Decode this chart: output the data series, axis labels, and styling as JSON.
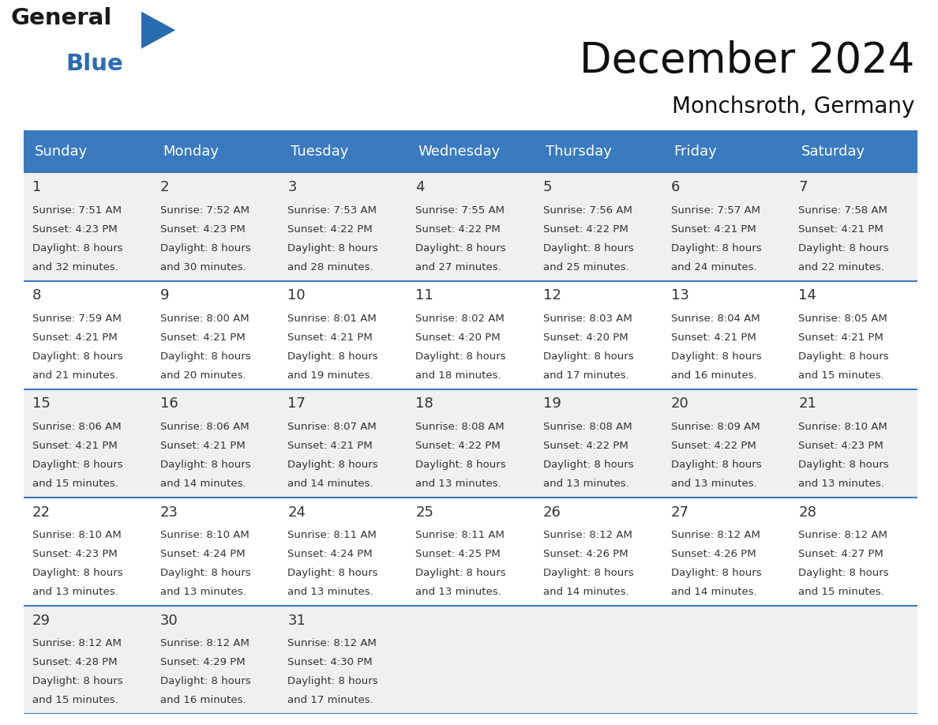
{
  "title": "December 2024",
  "subtitle": "Monchsroth, Germany",
  "header_bg_color": "#3a7abf",
  "header_text_color": "#ffffff",
  "cell_bg_week1": "#f0f0f0",
  "cell_bg_week2": "#ffffff",
  "cell_bg_week3": "#f0f0f0",
  "cell_bg_week4": "#ffffff",
  "cell_bg_week5": "#f0f0f0",
  "border_color": "#3a7abf",
  "text_color": "#333333",
  "day_names": [
    "Sunday",
    "Monday",
    "Tuesday",
    "Wednesday",
    "Thursday",
    "Friday",
    "Saturday"
  ],
  "weeks": [
    [
      {
        "day": 1,
        "sunrise": "7:51 AM",
        "sunset": "4:23 PM",
        "daylight": "8 hours and 32 minutes."
      },
      {
        "day": 2,
        "sunrise": "7:52 AM",
        "sunset": "4:23 PM",
        "daylight": "8 hours and 30 minutes."
      },
      {
        "day": 3,
        "sunrise": "7:53 AM",
        "sunset": "4:22 PM",
        "daylight": "8 hours and 28 minutes."
      },
      {
        "day": 4,
        "sunrise": "7:55 AM",
        "sunset": "4:22 PM",
        "daylight": "8 hours and 27 minutes."
      },
      {
        "day": 5,
        "sunrise": "7:56 AM",
        "sunset": "4:22 PM",
        "daylight": "8 hours and 25 minutes."
      },
      {
        "day": 6,
        "sunrise": "7:57 AM",
        "sunset": "4:21 PM",
        "daylight": "8 hours and 24 minutes."
      },
      {
        "day": 7,
        "sunrise": "7:58 AM",
        "sunset": "4:21 PM",
        "daylight": "8 hours and 22 minutes."
      }
    ],
    [
      {
        "day": 8,
        "sunrise": "7:59 AM",
        "sunset": "4:21 PM",
        "daylight": "8 hours and 21 minutes."
      },
      {
        "day": 9,
        "sunrise": "8:00 AM",
        "sunset": "4:21 PM",
        "daylight": "8 hours and 20 minutes."
      },
      {
        "day": 10,
        "sunrise": "8:01 AM",
        "sunset": "4:21 PM",
        "daylight": "8 hours and 19 minutes."
      },
      {
        "day": 11,
        "sunrise": "8:02 AM",
        "sunset": "4:20 PM",
        "daylight": "8 hours and 18 minutes."
      },
      {
        "day": 12,
        "sunrise": "8:03 AM",
        "sunset": "4:20 PM",
        "daylight": "8 hours and 17 minutes."
      },
      {
        "day": 13,
        "sunrise": "8:04 AM",
        "sunset": "4:21 PM",
        "daylight": "8 hours and 16 minutes."
      },
      {
        "day": 14,
        "sunrise": "8:05 AM",
        "sunset": "4:21 PM",
        "daylight": "8 hours and 15 minutes."
      }
    ],
    [
      {
        "day": 15,
        "sunrise": "8:06 AM",
        "sunset": "4:21 PM",
        "daylight": "8 hours and 15 minutes."
      },
      {
        "day": 16,
        "sunrise": "8:06 AM",
        "sunset": "4:21 PM",
        "daylight": "8 hours and 14 minutes."
      },
      {
        "day": 17,
        "sunrise": "8:07 AM",
        "sunset": "4:21 PM",
        "daylight": "8 hours and 14 minutes."
      },
      {
        "day": 18,
        "sunrise": "8:08 AM",
        "sunset": "4:22 PM",
        "daylight": "8 hours and 13 minutes."
      },
      {
        "day": 19,
        "sunrise": "8:08 AM",
        "sunset": "4:22 PM",
        "daylight": "8 hours and 13 minutes."
      },
      {
        "day": 20,
        "sunrise": "8:09 AM",
        "sunset": "4:22 PM",
        "daylight": "8 hours and 13 minutes."
      },
      {
        "day": 21,
        "sunrise": "8:10 AM",
        "sunset": "4:23 PM",
        "daylight": "8 hours and 13 minutes."
      }
    ],
    [
      {
        "day": 22,
        "sunrise": "8:10 AM",
        "sunset": "4:23 PM",
        "daylight": "8 hours and 13 minutes."
      },
      {
        "day": 23,
        "sunrise": "8:10 AM",
        "sunset": "4:24 PM",
        "daylight": "8 hours and 13 minutes."
      },
      {
        "day": 24,
        "sunrise": "8:11 AM",
        "sunset": "4:24 PM",
        "daylight": "8 hours and 13 minutes."
      },
      {
        "day": 25,
        "sunrise": "8:11 AM",
        "sunset": "4:25 PM",
        "daylight": "8 hours and 13 minutes."
      },
      {
        "day": 26,
        "sunrise": "8:12 AM",
        "sunset": "4:26 PM",
        "daylight": "8 hours and 14 minutes."
      },
      {
        "day": 27,
        "sunrise": "8:12 AM",
        "sunset": "4:26 PM",
        "daylight": "8 hours and 14 minutes."
      },
      {
        "day": 28,
        "sunrise": "8:12 AM",
        "sunset": "4:27 PM",
        "daylight": "8 hours and 15 minutes."
      }
    ],
    [
      {
        "day": 29,
        "sunrise": "8:12 AM",
        "sunset": "4:28 PM",
        "daylight": "8 hours and 15 minutes."
      },
      {
        "day": 30,
        "sunrise": "8:12 AM",
        "sunset": "4:29 PM",
        "daylight": "8 hours and 16 minutes."
      },
      {
        "day": 31,
        "sunrise": "8:12 AM",
        "sunset": "4:30 PM",
        "daylight": "8 hours and 17 minutes."
      },
      null,
      null,
      null,
      null
    ]
  ],
  "logo_text_color": "#1a1a1a",
  "logo_blue_color": "#2a6cb0",
  "title_fontsize": 38,
  "subtitle_fontsize": 20,
  "header_fontsize": 13,
  "day_num_fontsize": 13,
  "cell_text_fontsize": 9.5
}
